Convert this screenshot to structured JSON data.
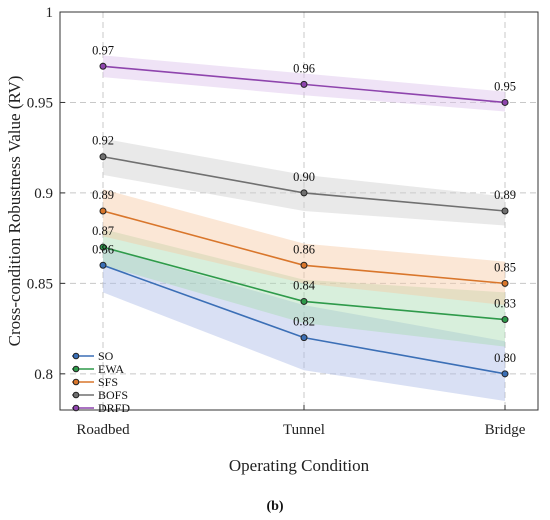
{
  "chart_data": {
    "type": "line",
    "categories": [
      "Roadbed",
      "Tunnel",
      "Bridge"
    ],
    "xlabel": "Operating Condition",
    "ylabel": "Cross-condition Robustness Value (RV)",
    "ylim": [
      0.78,
      1.0
    ],
    "yticks": [
      0.8,
      0.85,
      0.9,
      0.95,
      1
    ],
    "ytick_labels": [
      "0.8",
      "0.85",
      "0.9",
      "0.95",
      "1"
    ],
    "grid": true,
    "legend_position": "bottom-left",
    "caption": "(b)",
    "series": [
      {
        "name": "SO",
        "color": "#3b6fb6",
        "band_color": "#aabbe6",
        "values": [
          0.86,
          0.82,
          0.8
        ],
        "labels": [
          "0.86",
          "0.82",
          "0.80"
        ],
        "band_upper": [
          0.87,
          0.838,
          0.818
        ],
        "band_lower": [
          0.845,
          0.802,
          0.785
        ]
      },
      {
        "name": "EWA",
        "color": "#2e9a4a",
        "band_color": "#a9dcb2",
        "values": [
          0.87,
          0.84,
          0.83
        ],
        "labels": [
          "0.87",
          "0.84",
          "0.83"
        ],
        "band_upper": [
          0.88,
          0.852,
          0.845
        ],
        "band_lower": [
          0.86,
          0.828,
          0.815
        ]
      },
      {
        "name": "SFS",
        "color": "#d9762b",
        "band_color": "#f6c9a4",
        "values": [
          0.89,
          0.86,
          0.85
        ],
        "labels": [
          "0.89",
          "0.86",
          "0.85"
        ],
        "band_upper": [
          0.902,
          0.872,
          0.862
        ],
        "band_lower": [
          0.876,
          0.85,
          0.838
        ]
      },
      {
        "name": "BOFS",
        "color": "#707070",
        "band_color": "#cfcfcf",
        "values": [
          0.92,
          0.9,
          0.89
        ],
        "labels": [
          "0.92",
          "0.90",
          "0.89"
        ],
        "band_upper": [
          0.93,
          0.91,
          0.898
        ],
        "band_lower": [
          0.91,
          0.89,
          0.882
        ]
      },
      {
        "name": "DRFD",
        "color": "#8e44ad",
        "band_color": "#dcc2ec",
        "values": [
          0.97,
          0.96,
          0.95
        ],
        "labels": [
          "0.97",
          "0.96",
          "0.95"
        ],
        "band_upper": [
          0.976,
          0.966,
          0.956
        ],
        "band_lower": [
          0.964,
          0.954,
          0.945
        ]
      }
    ]
  }
}
